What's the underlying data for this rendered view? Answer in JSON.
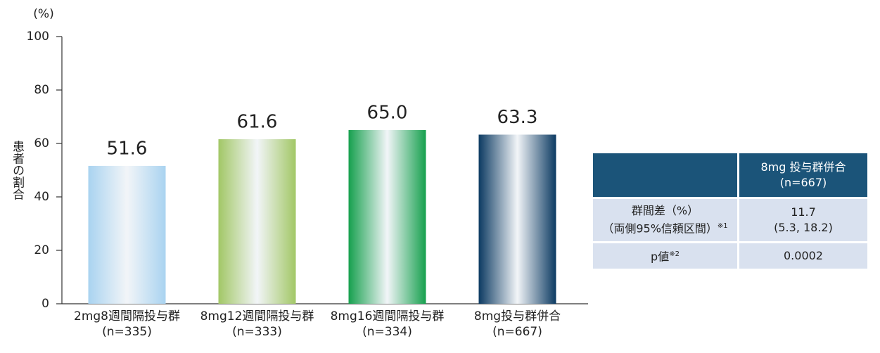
{
  "chart_data": {
    "type": "bar",
    "y_unit": "(%)",
    "y_label": "患者の割合",
    "categories": [
      "2mg8週間隔投与群",
      "8mg12週間隔投与群",
      "8mg16週間隔投与群",
      "8mg投与群併合"
    ],
    "n_labels": [
      "(n=335)",
      "(n=333)",
      "(n=334)",
      "(n=667)"
    ],
    "values": [
      51.6,
      61.6,
      65.0,
      63.3
    ],
    "value_labels": [
      "51.6",
      "61.6",
      "65.0",
      "63.3"
    ],
    "colors": [
      "#a9d3f0",
      "#a2c766",
      "#16a04e",
      "#0c3a62"
    ],
    "ylim": [
      0,
      100
    ],
    "yticks": [
      0,
      20,
      40,
      60,
      80,
      100
    ],
    "grid": false
  },
  "table": {
    "header": [
      "8mg 投与群併合",
      "(n=667)"
    ],
    "rows": [
      {
        "label": [
          "群間差（%）",
          "（両側95%信頼区間）"
        ],
        "note": "※1",
        "value": [
          "11.7",
          "(5.3, 18.2)"
        ]
      },
      {
        "label": [
          "p値"
        ],
        "note": "※2",
        "value": [
          "0.0002"
        ]
      }
    ]
  }
}
